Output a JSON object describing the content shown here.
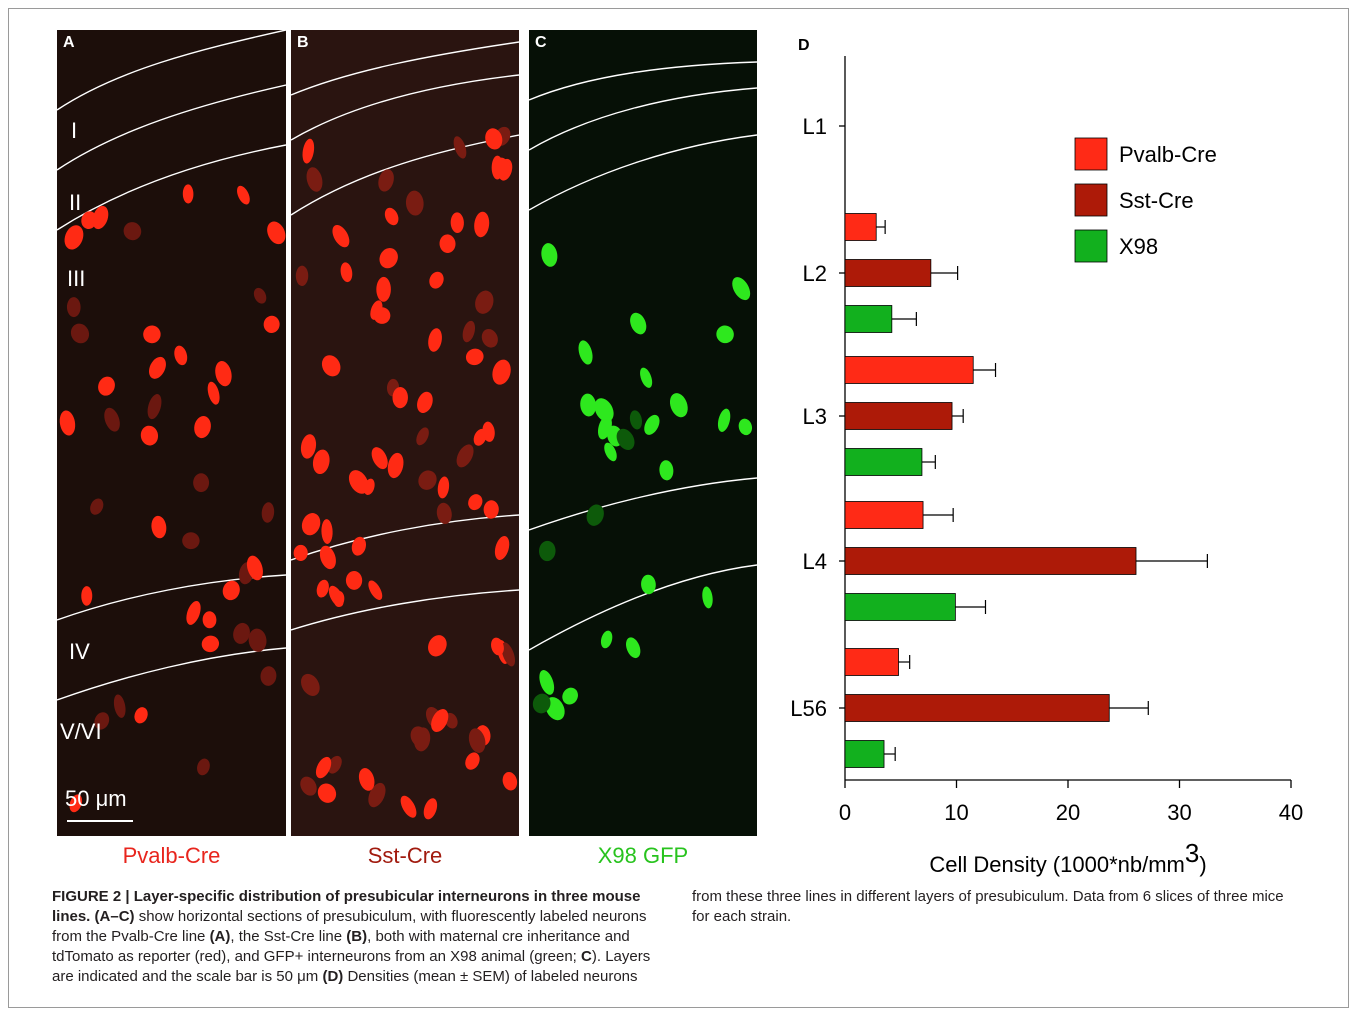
{
  "figure": {
    "panels": [
      {
        "label": "A",
        "strain_label": "Pvalb-Cre",
        "strain_color": "#e8251d",
        "layers": [
          "I",
          "II",
          "III",
          "IV",
          "V/VI"
        ],
        "scale_bar": "50 μm"
      },
      {
        "label": "B",
        "strain_label": "Sst-Cre",
        "strain_color": "#a11a0e"
      },
      {
        "label": "C",
        "strain_label": "X98 GFP",
        "strain_color": "#28c31e"
      }
    ]
  },
  "chart_data": {
    "type": "bar",
    "orientation": "horizontal",
    "panel_label": "D",
    "categories": [
      "L1",
      "L2",
      "L3",
      "L4",
      "L56"
    ],
    "series": [
      {
        "name": "Pvalb-Cre",
        "color": "#ff2a16",
        "values": [
          0,
          2.8,
          11.5,
          7.0,
          4.8
        ],
        "errors": [
          0,
          0.8,
          2.0,
          2.7,
          1.0
        ]
      },
      {
        "name": "Sst-Cre",
        "color": "#ad1a08",
        "values": [
          0,
          7.7,
          9.6,
          26.1,
          23.7
        ],
        "errors": [
          0,
          2.4,
          1.0,
          6.4,
          3.5
        ]
      },
      {
        "name": "X98",
        "color": "#12b01e",
        "values": [
          0,
          4.2,
          6.9,
          9.9,
          3.5
        ],
        "errors": [
          0,
          2.2,
          1.2,
          2.7,
          1.0
        ]
      }
    ],
    "xlabel": "Cell Density (1000*nb/mm",
    "xlabel_sup": "3",
    "xlabel_close": ")",
    "xlim": [
      0,
      40
    ],
    "xticks": [
      "0",
      "10",
      "20",
      "30",
      "40"
    ],
    "legend_position": "top-right",
    "grid": false
  },
  "caption": {
    "label": "FIGURE 2 | Layer-specific distribution of presubicular interneurons in three mouse lines.",
    "p1": " show horizontal sections of presubiculum, with fluorescently labeled neurons from the Pvalb-Cre line ",
    "p2": ", the Sst-Cre line ",
    "p3": ", both with maternal cre inheritance and tdTomato as reporter (red), and GFP+ interneurons from an X98 animal (green; ",
    "p4": "). Layers are indicated and the scale bar is 50 μm ",
    "p5": " Densities (mean ± SEM) of labeled neurons from these three lines in different layers of presubiculum. Data from 6 slices of three mice for each strain.",
    "ref_abc": "(A–C)",
    "ref_a": "(A)",
    "ref_b": "(B)",
    "ref_c": "C",
    "ref_d": "(D)"
  }
}
